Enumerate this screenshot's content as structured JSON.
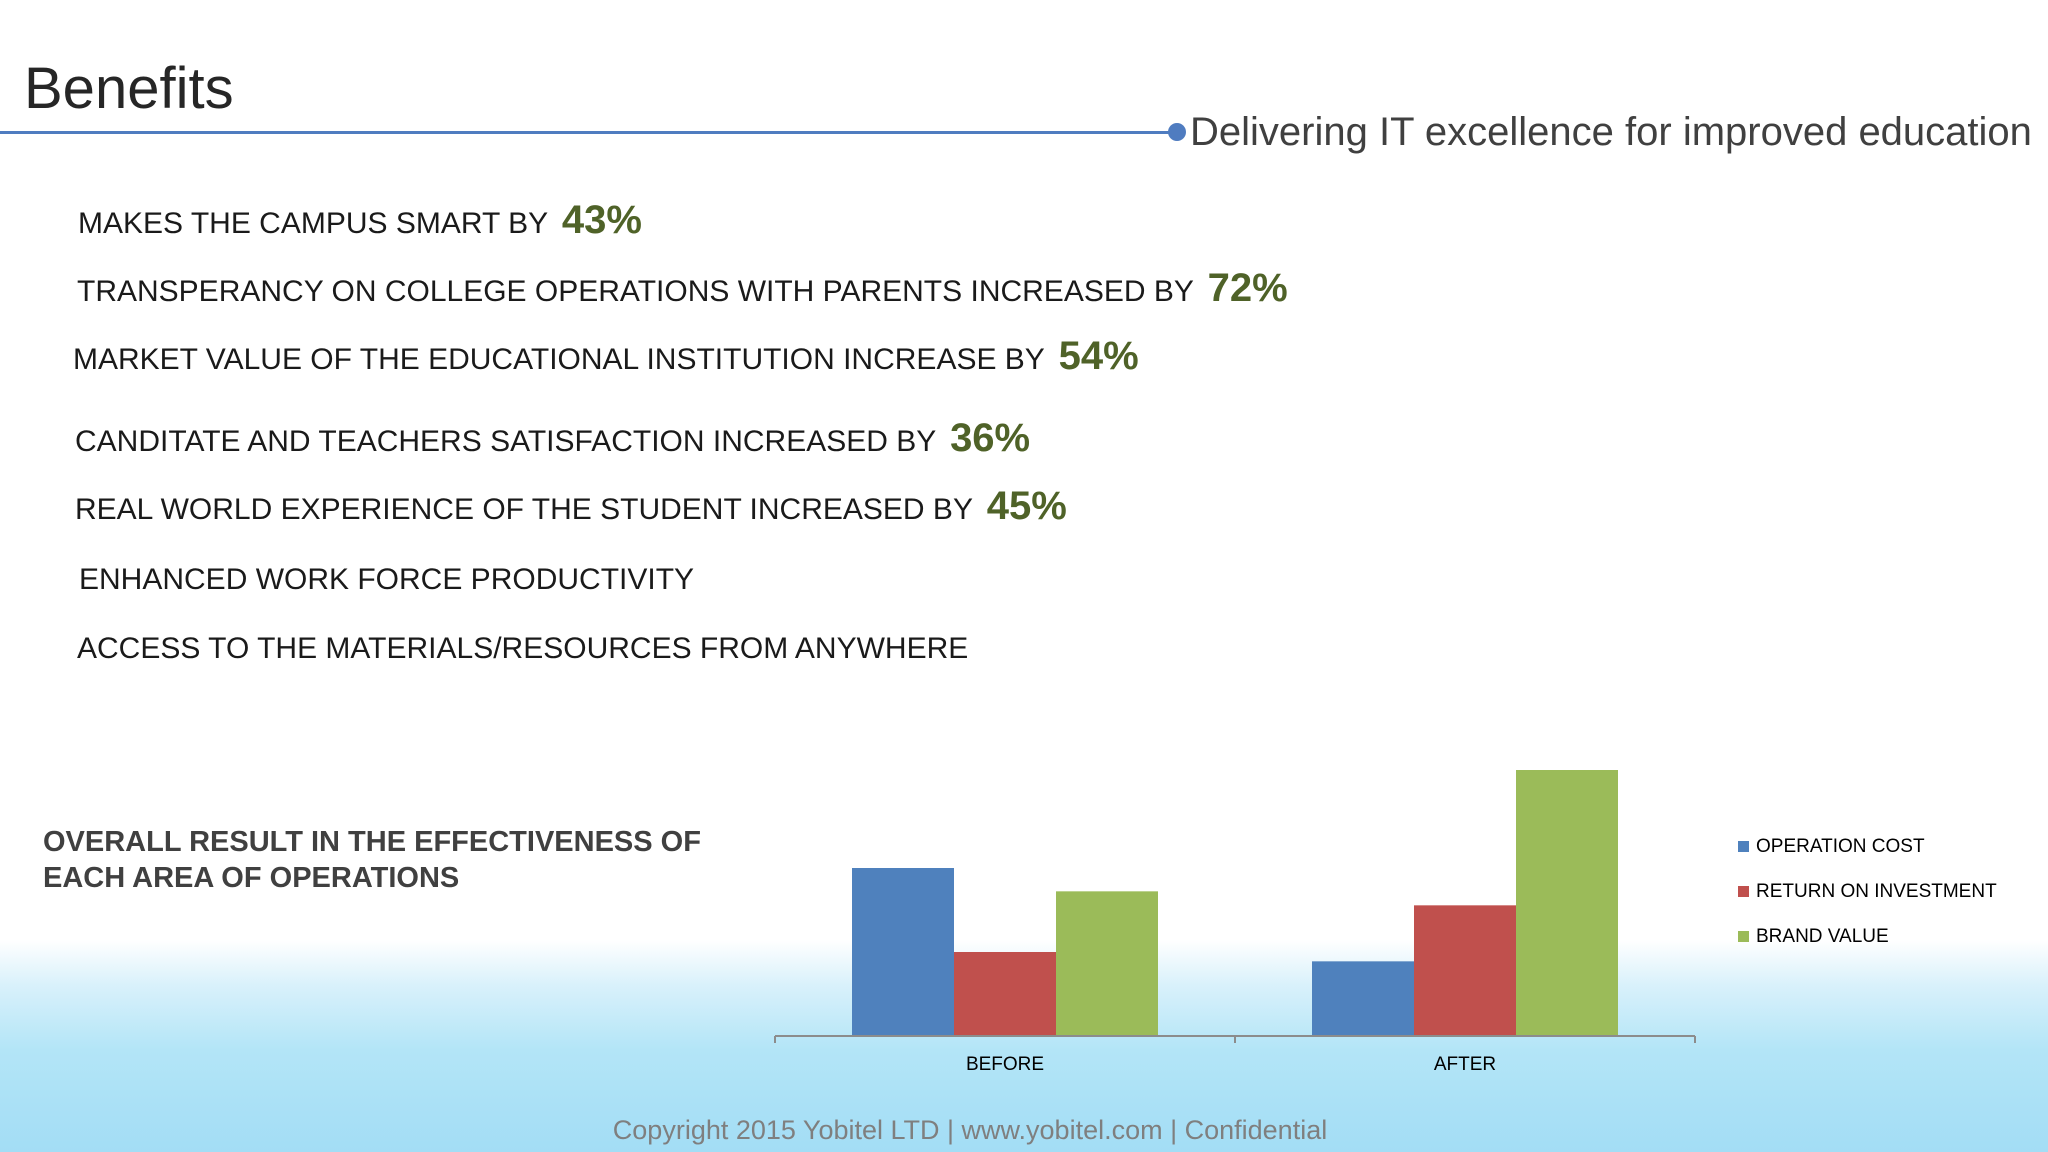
{
  "slide": {
    "title": "Benefits",
    "subtitle": "Delivering IT excellence for improved education",
    "footer": "Copyright 2015 Yobitel LTD | www.yobitel.com | Confidential",
    "accent_color": "#4f7cc0",
    "highlight_color": "#4f6228"
  },
  "benefits": [
    {
      "text": "MAKES THE CAMPUS SMART BY",
      "pct": "43%"
    },
    {
      "text": "TRANSPERANCY ON COLLEGE OPERATIONS WITH PARENTS INCREASED BY",
      "pct": "72%"
    },
    {
      "text": "MARKET VALUE OF THE EDUCATIONAL INSTITUTION INCREASE BY",
      "pct": "54%"
    },
    {
      "text": "CANDITATE AND TEACHERS SATISFACTION INCREASED BY",
      "pct": "36%"
    },
    {
      "text": "REAL WORLD EXPERIENCE OF THE STUDENT INCREASED BY",
      "pct": "45%"
    },
    {
      "text": "ENHANCED WORK FORCE PRODUCTIVITY",
      "pct": ""
    },
    {
      "text": "ACCESS TO THE MATERIALS/RESOURCES FROM ANYWHERE",
      "pct": ""
    }
  ],
  "overall_result": {
    "line1": "OVERALL RESULT IN THE EFFECTIVENESS OF",
    "line2": "EACH AREA OF OPERATIONS"
  },
  "chart_data": {
    "type": "bar",
    "categories": [
      "BEFORE",
      "AFTER"
    ],
    "series": [
      {
        "name": "OPERATION COST",
        "color": "#4f81bd",
        "values": [
          3.6,
          1.6
        ]
      },
      {
        "name": "RETURN ON INVESTMENT",
        "color": "#c0504d",
        "values": [
          1.8,
          2.8
        ]
      },
      {
        "name": "BRAND VALUE",
        "color": "#9bbb59",
        "values": [
          3.1,
          5.7
        ]
      }
    ],
    "ylim": [
      0,
      6
    ],
    "grid": false,
    "legend": "right"
  }
}
